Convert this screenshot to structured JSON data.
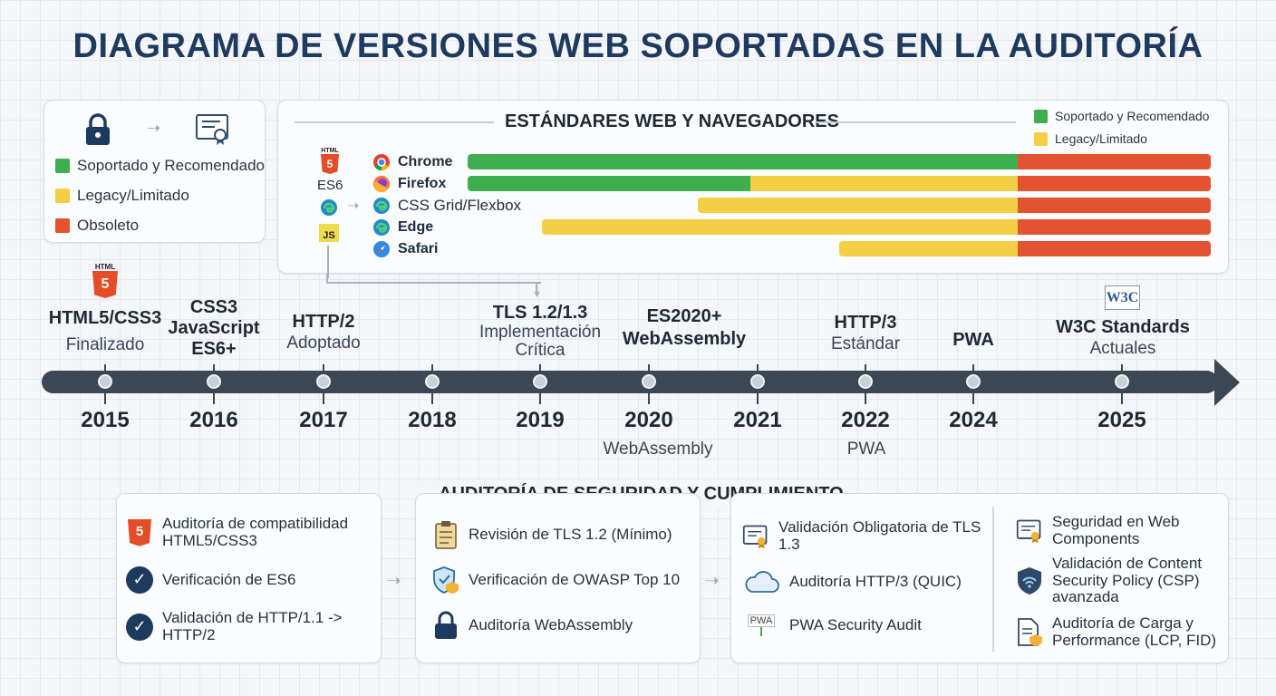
{
  "title": "DIAGRAMA DE VERSIONES WEB SOPORTADAS EN LA AUDITORÍA",
  "colors": {
    "green": "#3fae4f",
    "yellow": "#f4cf45",
    "red": "#e4532f",
    "navy": "#1e3a5f",
    "timeline": "#3b4754"
  },
  "legend": {
    "supported": "Soportado y Recomendado",
    "legacy": "Legacy/Limitado",
    "obsolete": "Obsoleto"
  },
  "standards": {
    "title": "ESTÁNDARES WEB Y NAVEGADORES",
    "legend_supported": "Soportado y Recomendado",
    "legend_legacy": "Legacy/Limitado",
    "side_labels": {
      "html5": "HTML",
      "es6": "ES6",
      "js": "JS"
    },
    "rows": [
      {
        "label": "Chrome",
        "icon": "chrome-icon",
        "green": 0.74,
        "yellow": 0.0,
        "red": 0.26,
        "start": 0.0
      },
      {
        "label": "Firefox",
        "icon": "firefox-icon",
        "green": 0.38,
        "yellow": 0.36,
        "red": 0.26,
        "start": 0.0
      },
      {
        "label": "CSS Grid/Flexbox",
        "icon": "edge-icon",
        "green": 0.0,
        "yellow": 0.43,
        "red": 0.26,
        "start": 0.31
      },
      {
        "label": "Edge",
        "icon": "edge-icon",
        "green": 0.0,
        "yellow": 0.64,
        "red": 0.26,
        "start": 0.1
      },
      {
        "label": "Safari",
        "icon": "safari-icon",
        "green": 0.0,
        "yellow": 0.24,
        "red": 0.26,
        "start": 0.5
      }
    ]
  },
  "timeline": {
    "years": [
      "2015",
      "2016",
      "2017",
      "2018",
      "2019",
      "2020",
      "2021",
      "2022",
      "2024",
      "2025"
    ],
    "events": {
      "e2015_b": "HTML5/CSS3",
      "e2015_n": "Finalizado",
      "e2016_b1": "CSS3",
      "e2016_b2": "JavaScript",
      "e2016_b3": "ES6+",
      "e2017_b": "HTTP/2",
      "e2017_n": "Adoptado",
      "e2019_b": "TLS 1.2/1.3",
      "e2019_n1": "Implementación",
      "e2019_n2": "Crítica",
      "e2020_b1": "ES2020+",
      "e2020_b2": "WebAssembly",
      "e2022_b": "HTTP/3",
      "e2022_n": "Estándar",
      "e2024_b": "PWA",
      "e2025_b": "W3C Standards",
      "e2025_n": "Actuales",
      "w3c_logo": "W3C"
    },
    "below": {
      "b2020": "WebAssembly",
      "b2022": "PWA"
    }
  },
  "audit": {
    "title": "AUDITORÍA DE SEGURIDAD Y CUMPLIMIENTO",
    "col1": [
      "Auditoría de compatibilidad HTML5/CSS3",
      "Verificación de ES6",
      "Validación de HTTP/1.1 -> HTTP/2"
    ],
    "col2": [
      "Revisión de TLS 1.2 (Mínimo)",
      "Verificación de OWASP Top 10",
      "Auditoría WebAssembly"
    ],
    "col3": [
      "Validación Obligatoria de TLS 1.3",
      "Auditoría HTTP/3 (QUIC)",
      "PWA Security Audit"
    ],
    "col4": [
      "Seguridad en Web Components",
      "Validación de Content Security Policy (CSP) avanzada",
      "Auditoría de Carga y Performance (LCP, FID)"
    ],
    "pwa_badge": "PWA"
  }
}
